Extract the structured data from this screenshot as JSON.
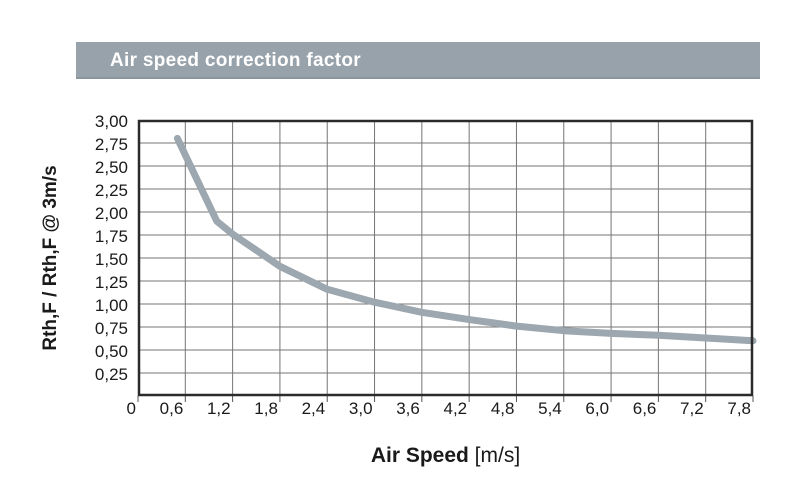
{
  "page": {
    "background": "#ffffff"
  },
  "header": {
    "title": "Air speed correction factor",
    "bg_color": "#98a2aa",
    "text_color": "#ffffff"
  },
  "chart_data": {
    "type": "line",
    "title": "Air speed correction factor",
    "xlabel": "Air Speed [m/s]",
    "xlabel_bold_part": "Air Speed",
    "xlabel_unit_part": " [m/s]",
    "ylabel": "Rth,F / Rth,F @ 3m/s",
    "xlim": [
      0,
      7.8
    ],
    "ylim": [
      0,
      3
    ],
    "grid": true,
    "legend": "none",
    "x_tick_labels": [
      "0",
      "0,6",
      "1,2",
      "1,8",
      "2,4",
      "3,0",
      "3,6",
      "4,2",
      "4,8",
      "5,4",
      "6,0",
      "6,6",
      "7,2",
      "7,8"
    ],
    "x_tick_values": [
      0,
      0.6,
      1.2,
      1.8,
      2.4,
      3.0,
      3.6,
      4.2,
      4.8,
      5.4,
      6.0,
      6.6,
      7.2,
      7.8
    ],
    "y_tick_labels": [
      "3,00",
      "2,75",
      "2,50",
      "2,25",
      "2,00",
      "1,75",
      "1,50",
      "1,25",
      "1,00",
      "0,75",
      "0,50",
      "0,25"
    ],
    "y_tick_values": [
      3.0,
      2.75,
      2.5,
      2.25,
      2.0,
      1.75,
      1.5,
      1.25,
      1.0,
      0.75,
      0.5,
      0.25
    ],
    "series": [
      {
        "name": "air-speed-correction-factor",
        "color": "#9ca7af",
        "stroke_width": 7,
        "points": [
          [
            0.5,
            2.8
          ],
          [
            1.0,
            1.9
          ],
          [
            1.2,
            1.76
          ],
          [
            1.8,
            1.41
          ],
          [
            2.4,
            1.16
          ],
          [
            3.0,
            1.02
          ],
          [
            3.6,
            0.91
          ],
          [
            4.2,
            0.83
          ],
          [
            4.8,
            0.76
          ],
          [
            5.4,
            0.71
          ],
          [
            6.0,
            0.68
          ],
          [
            6.6,
            0.66
          ],
          [
            7.2,
            0.63
          ],
          [
            7.8,
            0.6
          ]
        ]
      }
    ],
    "style": {
      "grid_color": "#757575",
      "frame_color": "#2b2b2b",
      "tick_color": "#555555"
    }
  }
}
